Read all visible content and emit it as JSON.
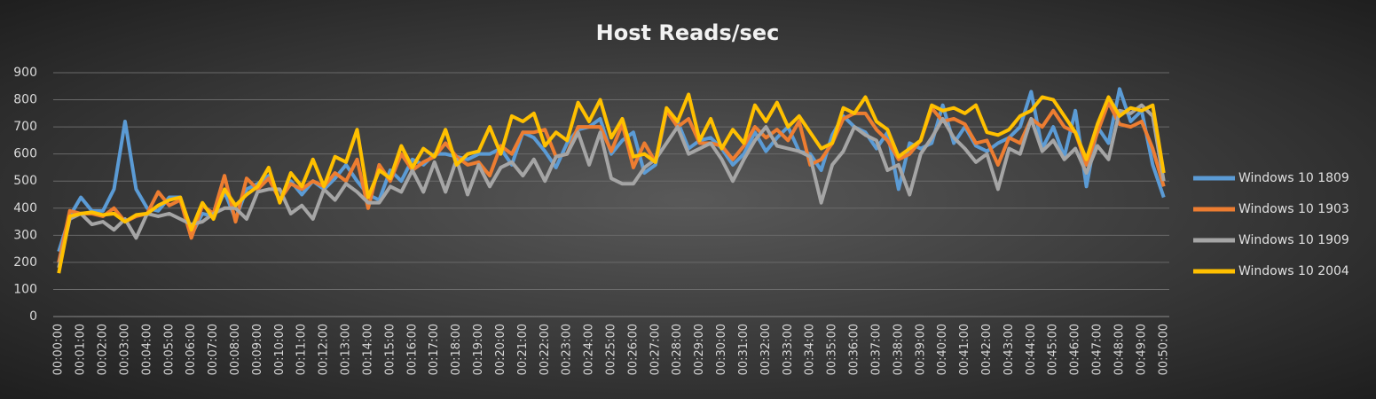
{
  "chart_data": {
    "type": "line",
    "title": "Host Reads/sec",
    "categories": [
      "00:00:00",
      null,
      "00:01:00",
      null,
      "00:02:00",
      null,
      "00:03:00",
      null,
      "00:04:00",
      null,
      "00:05:00",
      null,
      "00:06:00",
      null,
      "00:07:00",
      null,
      "00:08:00",
      null,
      "00:09:00",
      null,
      "00:10:00",
      null,
      "00:11:00",
      null,
      "00:12:00",
      null,
      "00:13:00",
      null,
      "00:14:00",
      null,
      "00:15:00",
      null,
      "00:16:00",
      null,
      "00:17:00",
      null,
      "00:18:00",
      null,
      "00:19:00",
      null,
      "00:20:00",
      null,
      "00:21:00",
      null,
      "00:22:00",
      null,
      "00:23:00",
      null,
      "00:24:00",
      null,
      "00:25:00",
      null,
      "00:26:00",
      null,
      "00:27:00",
      null,
      "00:28:00",
      null,
      "00:29:00",
      null,
      "00:30:00",
      null,
      "00:31:00",
      null,
      "00:32:00",
      null,
      "00:33:00",
      null,
      "00:34:00",
      null,
      "00:35:00",
      null,
      "00:36:00",
      null,
      "00:37:00",
      null,
      "00:38:00",
      null,
      "00:39:00",
      null,
      "00:40:00",
      null,
      "00:41:00",
      null,
      "00:42:00",
      null,
      "00:43:00",
      null,
      "00:44:00",
      null,
      "00:45:00",
      null,
      "00:46:00",
      null,
      "00:47:00",
      null,
      "00:48:00",
      null,
      "00:49:00",
      null,
      "00:50:00"
    ],
    "series": [
      {
        "name": "Windows 10 1809",
        "color": "#5b9bd5",
        "values": [
          240,
          370,
          440,
          390,
          390,
          470,
          720,
          470,
          400,
          390,
          440,
          440,
          300,
          380,
          370,
          460,
          360,
          470,
          490,
          520,
          430,
          500,
          450,
          500,
          470,
          510,
          560,
          500,
          450,
          430,
          540,
          500,
          580,
          560,
          600,
          600,
          590,
          580,
          600,
          600,
          620,
          560,
          680,
          660,
          610,
          550,
          640,
          690,
          700,
          730,
          600,
          650,
          680,
          530,
          560,
          760,
          720,
          620,
          650,
          660,
          620,
          560,
          600,
          680,
          610,
          660,
          700,
          610,
          600,
          540,
          670,
          740,
          700,
          680,
          620,
          680,
          470,
          640,
          620,
          640,
          780,
          640,
          700,
          630,
          610,
          640,
          660,
          700,
          830,
          620,
          700,
          590,
          760,
          480,
          700,
          640,
          840,
          720,
          760,
          560,
          440
        ]
      },
      {
        "name": "Windows 10 1903",
        "color": "#ed7d31",
        "values": [
          200,
          390,
          380,
          380,
          370,
          400,
          350,
          370,
          380,
          460,
          410,
          430,
          290,
          410,
          380,
          520,
          350,
          510,
          470,
          510,
          430,
          490,
          470,
          500,
          480,
          530,
          500,
          580,
          400,
          560,
          500,
          600,
          540,
          570,
          590,
          640,
          590,
          560,
          570,
          520,
          630,
          600,
          680,
          680,
          690,
          590,
          600,
          700,
          700,
          700,
          610,
          710,
          550,
          640,
          570,
          760,
          700,
          730,
          640,
          640,
          630,
          580,
          630,
          700,
          660,
          690,
          650,
          720,
          560,
          580,
          640,
          730,
          750,
          750,
          690,
          650,
          580,
          600,
          650,
          770,
          720,
          730,
          710,
          640,
          650,
          560,
          660,
          640,
          730,
          700,
          760,
          700,
          680,
          560,
          680,
          790,
          710,
          700,
          720,
          620,
          480
        ]
      },
      {
        "name": "Windows 10 1909",
        "color": "#a5a5a5",
        "values": [
          180,
          360,
          380,
          340,
          350,
          320,
          360,
          290,
          380,
          370,
          380,
          360,
          340,
          350,
          380,
          400,
          400,
          360,
          460,
          470,
          470,
          380,
          410,
          360,
          470,
          430,
          490,
          460,
          420,
          420,
          480,
          460,
          540,
          460,
          570,
          460,
          580,
          450,
          560,
          480,
          550,
          570,
          520,
          580,
          500,
          590,
          600,
          680,
          560,
          680,
          510,
          490,
          490,
          550,
          580,
          640,
          700,
          600,
          620,
          640,
          580,
          500,
          580,
          650,
          700,
          630,
          620,
          610,
          590,
          420,
          560,
          610,
          700,
          670,
          650,
          540,
          560,
          450,
          600,
          660,
          730,
          660,
          620,
          570,
          600,
          470,
          620,
          600,
          730,
          610,
          650,
          580,
          620,
          530,
          630,
          580,
          760,
          750,
          780,
          740,
          500
        ]
      },
      {
        "name": "Windows 10 2004",
        "color": "#ffc000",
        "values": [
          160,
          370,
          380,
          385,
          375,
          380,
          350,
          375,
          380,
          410,
          430,
          440,
          320,
          420,
          360,
          470,
          410,
          450,
          480,
          550,
          420,
          530,
          480,
          580,
          480,
          590,
          570,
          690,
          440,
          540,
          510,
          630,
          550,
          620,
          590,
          690,
          560,
          600,
          610,
          700,
          600,
          740,
          720,
          750,
          630,
          680,
          650,
          790,
          720,
          800,
          660,
          730,
          590,
          600,
          570,
          770,
          720,
          820,
          650,
          730,
          620,
          690,
          640,
          780,
          720,
          790,
          700,
          740,
          680,
          620,
          640,
          770,
          750,
          810,
          720,
          690,
          590,
          620,
          650,
          780,
          760,
          770,
          750,
          780,
          680,
          670,
          690,
          740,
          760,
          810,
          800,
          740,
          680,
          580,
          710,
          810,
          740,
          770,
          760,
          780,
          530
        ]
      }
    ],
    "ylim": [
      0,
      900
    ],
    "yticks": [
      0,
      100,
      200,
      300,
      400,
      500,
      600,
      700,
      800,
      900
    ],
    "grid": true,
    "legend": "right"
  }
}
